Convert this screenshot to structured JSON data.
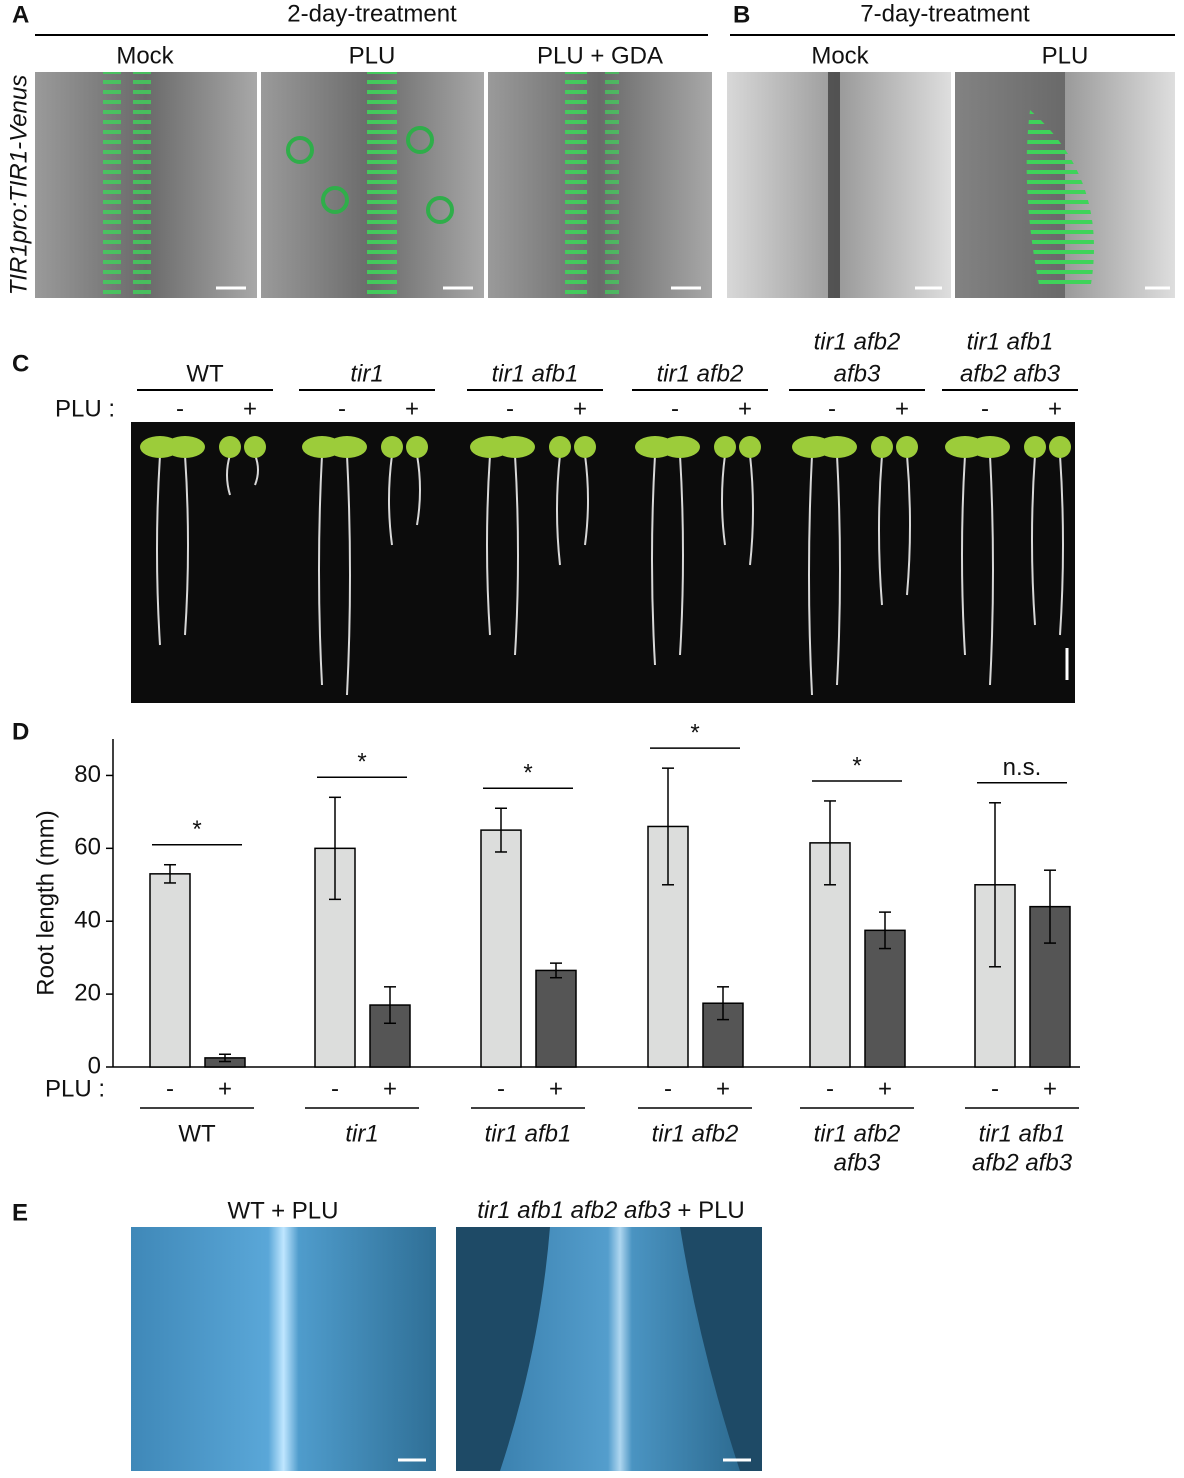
{
  "panel_letters": [
    "A",
    "B",
    "C",
    "D",
    "E"
  ],
  "panel_a": {
    "heading": "2-day-treatment",
    "side_label": "TIR1pro:TIR1-Venus",
    "images": [
      "Mock",
      "PLU",
      "PLU + GDA"
    ]
  },
  "panel_b": {
    "heading": "7-day-treatment",
    "images": [
      "Mock",
      "PLU"
    ]
  },
  "panel_c": {
    "row_label": "PLU :",
    "signs": [
      "-",
      "+"
    ],
    "groups": [
      [
        "WT"
      ],
      [
        "tir1"
      ],
      [
        "tir1 afb1"
      ],
      [
        "tir1 afb2"
      ],
      [
        "tir1 afb2",
        "afb3"
      ],
      [
        "tir1 afb1",
        "afb2 afb3"
      ]
    ]
  },
  "chart_data": {
    "type": "bar",
    "y_label": "Root length (mm)",
    "x_row_label": "PLU :",
    "categories": [
      [
        "WT"
      ],
      [
        "tir1"
      ],
      [
        "tir1 afb1"
      ],
      [
        "tir1 afb2"
      ],
      [
        "tir1 afb2",
        "afb3"
      ],
      [
        "tir1 afb1",
        "afb2 afb3"
      ]
    ],
    "series": [
      {
        "name": "-",
        "color": "#dcdddc",
        "values": [
          53,
          60,
          65,
          66,
          61.5,
          50
        ],
        "errors": [
          2.5,
          14,
          6,
          16,
          11.5,
          22.5
        ]
      },
      {
        "name": "+",
        "color": "#555555",
        "values": [
          2.5,
          17,
          26.5,
          17.5,
          37.5,
          44
        ],
        "errors": [
          1,
          5,
          2,
          4.5,
          5,
          10
        ]
      }
    ],
    "annotations": [
      "*",
      "*",
      "*",
      "*",
      "*",
      "n.s."
    ],
    "ylim": [
      0,
      90
    ],
    "yticks": [
      0,
      20,
      40,
      60,
      80
    ]
  },
  "panel_e": {
    "images": [
      {
        "label": "WT + PLU"
      },
      {
        "genotype": "tir1 afb1 afb2 afb3",
        "label": "+ PLU"
      }
    ]
  }
}
